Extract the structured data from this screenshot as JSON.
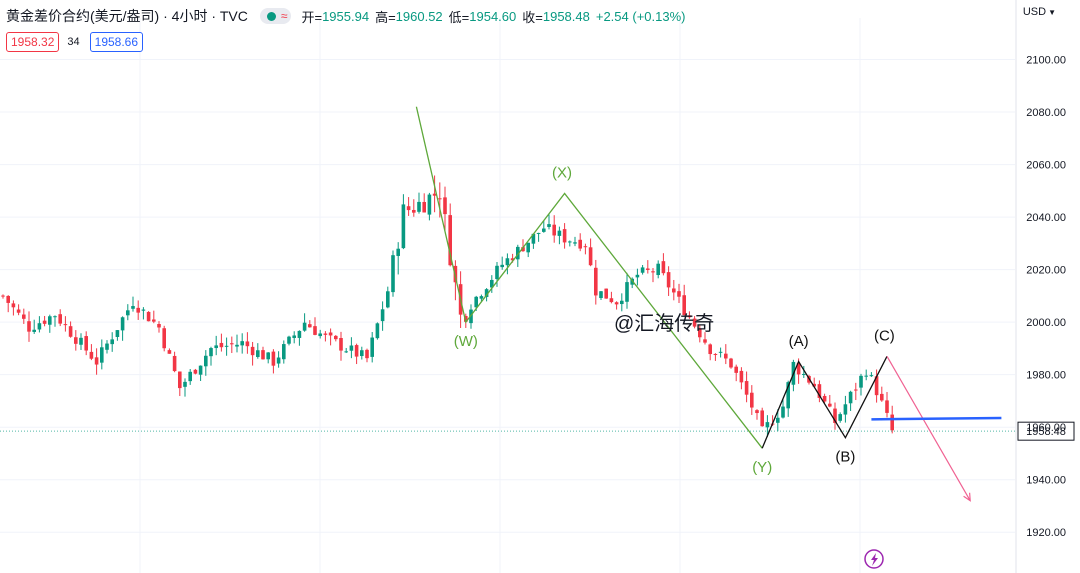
{
  "header": {
    "title": "黄金差价合约(美元/盎司) · 4小时 · TVC",
    "status_color": "#089981",
    "ohlc": [
      {
        "label": "开=",
        "value": "1955.94"
      },
      {
        "label": "高=",
        "value": "1960.52"
      },
      {
        "label": "低=",
        "value": "1954.60"
      },
      {
        "label": "收=",
        "value": "1958.48"
      }
    ],
    "change": "+2.54 (+0.13%)"
  },
  "quote": {
    "sell": "1958.32",
    "spread": "34",
    "buy": "1958.66"
  },
  "currency": "USD",
  "watermark": "@汇海传奇",
  "price_tag": "1958.48",
  "colors": {
    "up": "#089981",
    "down": "#f23645",
    "wave_green": "#5ea83a",
    "wave_black": "#111111",
    "arrow": "#f06292",
    "hline": "#2962ff"
  },
  "chart_data": {
    "type": "candlestick",
    "ylim": [
      1914,
      2112
    ],
    "yticks": [
      "2100.00",
      "2080.00",
      "2060.00",
      "2040.00",
      "2020.00",
      "2000.00",
      "1980.00",
      "1960.00",
      "1940.00",
      "1920.00"
    ],
    "last_price": 1958.48,
    "candle_count": 172,
    "close_path": [
      [
        0,
        2010
      ],
      [
        5,
        1998
      ],
      [
        10,
        2003
      ],
      [
        18,
        1985
      ],
      [
        25,
        2008
      ],
      [
        30,
        1998
      ],
      [
        34,
        1975
      ],
      [
        40,
        1990
      ],
      [
        46,
        1992
      ],
      [
        52,
        1985
      ],
      [
        58,
        2000
      ],
      [
        62,
        1994
      ],
      [
        70,
        1986
      ],
      [
        74,
        2012
      ],
      [
        77,
        2042
      ],
      [
        80,
        2045
      ],
      [
        84,
        2050
      ],
      [
        88,
        2002
      ],
      [
        92,
        2012
      ],
      [
        96,
        2022
      ],
      [
        104,
        2036
      ],
      [
        108,
        2032
      ],
      [
        112,
        2030
      ],
      [
        114,
        2012
      ],
      [
        118,
        2008
      ],
      [
        122,
        2018
      ],
      [
        126,
        2020
      ],
      [
        132,
        2002
      ],
      [
        136,
        1990
      ],
      [
        140,
        1984
      ],
      [
        144,
        1968
      ],
      [
        146,
        1958
      ],
      [
        150,
        1968
      ],
      [
        152,
        1984
      ],
      [
        156,
        1976
      ],
      [
        160,
        1962
      ],
      [
        163,
        1972
      ],
      [
        166,
        1982
      ],
      [
        168,
        1974
      ],
      [
        171,
        1958.48
      ]
    ],
    "waves": [
      {
        "color": "wave_green",
        "points": [
          [
            79.5,
            2082
          ],
          [
            89,
            2000
          ],
          [
            108,
            2049
          ],
          [
            146,
            1952
          ]
        ],
        "labels": [
          {
            "text": "(W)",
            "x": 89,
            "y": 1991,
            "color": "wave_green"
          },
          {
            "text": "(X)",
            "x": 107.5,
            "y": 2055,
            "color": "wave_green"
          },
          {
            "text": "(Y)",
            "x": 146,
            "y": 1943,
            "color": "wave_green"
          }
        ]
      },
      {
        "color": "wave_black",
        "points": [
          [
            146,
            1952
          ],
          [
            153,
            1985
          ],
          [
            162,
            1956
          ],
          [
            170,
            1987
          ]
        ],
        "labels": [
          {
            "text": "(A)",
            "x": 153,
            "y": 1991,
            "color": "wave_black"
          },
          {
            "text": "(B)",
            "x": 162,
            "y": 1947,
            "color": "wave_black"
          },
          {
            "text": "(C)",
            "x": 169.5,
            "y": 1993,
            "color": "wave_black"
          }
        ]
      }
    ],
    "projection_arrow": {
      "from": [
        170,
        1987
      ],
      "to": [
        186,
        1932
      ]
    },
    "horizontal_line": {
      "from": [
        167,
        1963
      ],
      "to": [
        192,
        1963.5
      ]
    }
  }
}
